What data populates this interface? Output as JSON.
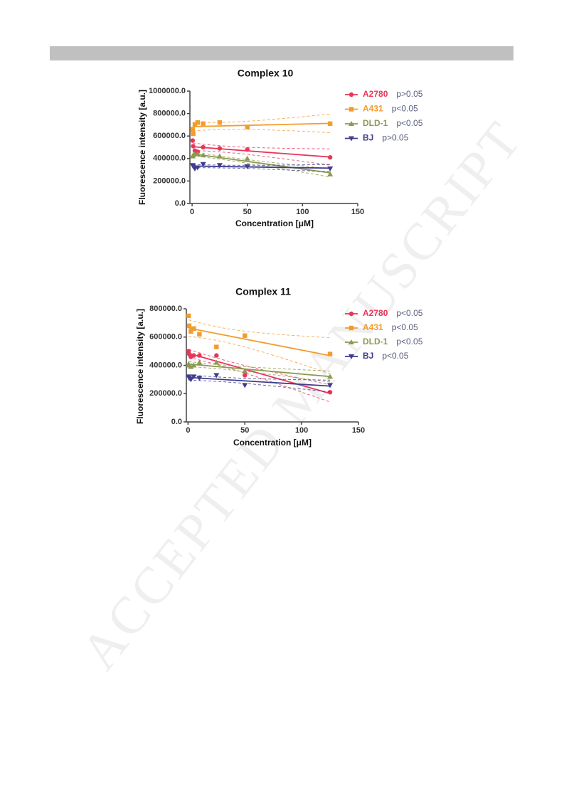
{
  "watermark": "ACCEPTED MANUSCRIPT",
  "chart_data": [
    {
      "type": "scatter",
      "title": "Complex 10",
      "x_label": "Concentration [μM]",
      "y_label": "Fluorescence intensity [a.u.]",
      "x": [
        0.5,
        1,
        2.5,
        5,
        10,
        25,
        50,
        125
      ],
      "xlim": [
        -2,
        150
      ],
      "xticks": [
        0,
        50,
        100,
        150
      ],
      "ylim": [
        0,
        1000000
      ],
      "yticks": [
        {
          "value": 0,
          "label": "0.0"
        },
        {
          "value": 200000,
          "label": "200000.0"
        },
        {
          "value": 400000,
          "label": "400000.0"
        },
        {
          "value": 600000,
          "label": "600000.0"
        },
        {
          "value": 800000,
          "label": "800000.0"
        },
        {
          "value": 1000000,
          "label": "1000000.0"
        }
      ],
      "legend": "top-right",
      "series": [
        {
          "name": "A2780",
          "p": "p>0.05",
          "color": "#e8365a",
          "marker": "circle",
          "values": [
            560000,
            510000,
            470000,
            460000,
            500000,
            490000,
            480000,
            410000
          ]
        },
        {
          "name": "A431",
          "p": "p<0.05",
          "color": "#f39c2e",
          "marker": "square",
          "values": [
            660000,
            620000,
            700000,
            720000,
            710000,
            720000,
            680000,
            710000
          ]
        },
        {
          "name": "DLD-1",
          "p": "p<0.05",
          "color": "#8c9a50",
          "marker": "triangle-up",
          "values": [
            420000,
            430000,
            440000,
            440000,
            430000,
            420000,
            400000,
            260000
          ]
        },
        {
          "name": "BJ",
          "p": "p>0.05",
          "color": "#3f3d8c",
          "marker": "triangle-down",
          "values": [
            340000,
            330000,
            310000,
            320000,
            350000,
            340000,
            330000,
            310000
          ]
        }
      ]
    },
    {
      "type": "scatter",
      "title": "Complex 11",
      "x_label": "Concentration [μM]",
      "y_label": "Fluorescence intensity [a.u.]",
      "x": [
        0.5,
        1,
        2.5,
        5,
        10,
        25,
        50,
        125
      ],
      "xlim": [
        -1.5,
        150
      ],
      "xticks": [
        0,
        50,
        100,
        150
      ],
      "ylim": [
        0,
        800000
      ],
      "yticks": [
        {
          "value": 0,
          "label": "0.0"
        },
        {
          "value": 200000,
          "label": "200000.0"
        },
        {
          "value": 400000,
          "label": "400000.0"
        },
        {
          "value": 600000,
          "label": "600000.0"
        },
        {
          "value": 800000,
          "label": "800000.0"
        }
      ],
      "legend": "top-right",
      "series": [
        {
          "name": "A2780",
          "p": "p<0.05",
          "color": "#e8365a",
          "marker": "circle",
          "values": [
            500000,
            480000,
            460000,
            470000,
            470000,
            470000,
            330000,
            210000
          ]
        },
        {
          "name": "A431",
          "p": "p<0.05",
          "color": "#f39c2e",
          "marker": "square",
          "values": [
            750000,
            680000,
            640000,
            660000,
            620000,
            530000,
            610000,
            480000
          ]
        },
        {
          "name": "DLD-1",
          "p": "p<0.05",
          "color": "#8c9a50",
          "marker": "triangle-up",
          "values": [
            410000,
            400000,
            390000,
            400000,
            420000,
            420000,
            360000,
            320000
          ]
        },
        {
          "name": "BJ",
          "p": "p<0.05",
          "color": "#3f3d8c",
          "marker": "triangle-down",
          "values": [
            320000,
            310000,
            300000,
            320000,
            310000,
            330000,
            260000,
            260000
          ]
        }
      ]
    }
  ]
}
